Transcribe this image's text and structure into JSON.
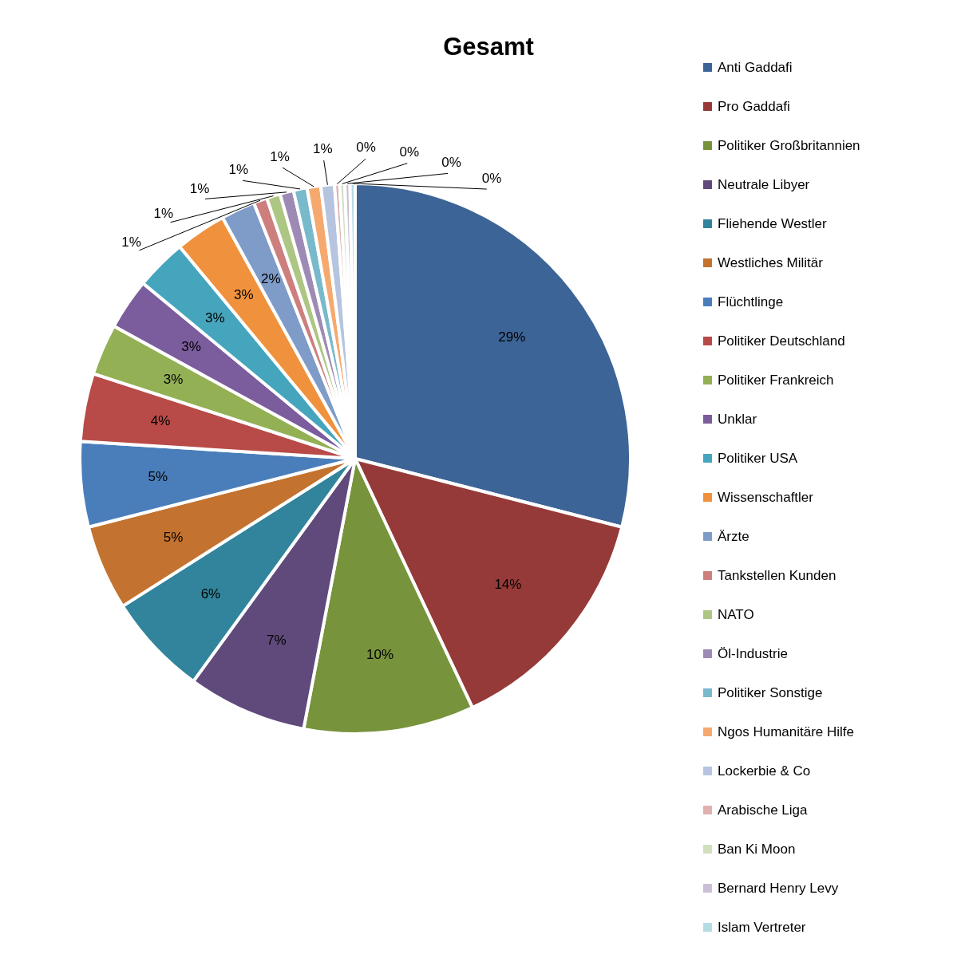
{
  "chart_data": {
    "type": "pie",
    "title": "Gesamt",
    "legend": "right",
    "categories": [
      "Anti Gaddafi",
      "Pro Gaddafi",
      "Politiker Großbritannien",
      "Neutrale Libyer",
      "Fliehende Westler",
      "Westliches Militär",
      "Flüchtlinge",
      "Politiker Deutschland",
      "Politiker Frankreich",
      "Unklar",
      "Politiker USA",
      "Wissenschaftler",
      "Ärzte",
      "Tankstellen Kunden",
      "NATO",
      "Öl-Industrie",
      "Politiker Sonstige",
      "Ngos Humanitäre Hilfe",
      "Lockerbie & Co",
      "Arabische Liga",
      "Ban Ki Moon",
      "Bernard Henry Levy",
      "Islam Vertreter"
    ],
    "values": [
      29,
      14,
      10,
      7,
      6,
      5,
      5,
      4,
      3,
      3,
      3,
      3,
      2,
      0.8,
      0.8,
      0.8,
      0.8,
      0.8,
      0.8,
      0.3,
      0.3,
      0.3,
      0.3
    ],
    "value_labels": [
      "29%",
      "14%",
      "10%",
      "7%",
      "6%",
      "5%",
      "5%",
      "4%",
      "3%",
      "3%",
      "3%",
      "3%",
      "2%",
      "1%",
      "1%",
      "1%",
      "1%",
      "1%",
      "1%",
      "0%",
      "0%",
      "0%",
      "0%"
    ],
    "colors": [
      "#3d6496",
      "#953a38",
      "#77933c",
      "#604a7b",
      "#31849b",
      "#c3732f",
      "#4a7ebb",
      "#b84b48",
      "#93b055",
      "#7b5c9c",
      "#45a5bd",
      "#f0923d",
      "#7f9cc9",
      "#cd7f7d",
      "#adc683",
      "#9e8bb5",
      "#79b9cc",
      "#f6a96e",
      "#b6c4df",
      "#dfb1b0",
      "#d2dfbf",
      "#c9bfd6",
      "#b5dbe3"
    ]
  }
}
